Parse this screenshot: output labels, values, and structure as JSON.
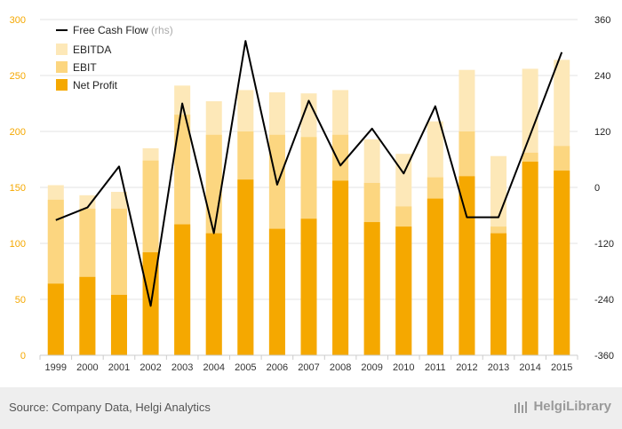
{
  "chart_data": {
    "type": "bar",
    "categories": [
      "1999",
      "2000",
      "2001",
      "2002",
      "2003",
      "2004",
      "2005",
      "2006",
      "2007",
      "2008",
      "2009",
      "2010",
      "2011",
      "2012",
      "2013",
      "2014",
      "2015"
    ],
    "series": [
      {
        "name": "EBITDA",
        "values": [
          152,
          143,
          146,
          185,
          241,
          227,
          237,
          235,
          234,
          237,
          193,
          180,
          209,
          255,
          178,
          256,
          264
        ],
        "color": "#FDE8B8"
      },
      {
        "name": "EBIT",
        "values": [
          139,
          131,
          131,
          174,
          215,
          197,
          200,
          197,
          195,
          197,
          154,
          133,
          159,
          200,
          115,
          181,
          187
        ],
        "color": "#FCD680"
      },
      {
        "name": "Net Profit",
        "values": [
          64,
          70,
          54,
          92,
          117,
          109,
          157,
          113,
          122,
          156,
          119,
          115,
          140,
          160,
          109,
          173,
          165
        ],
        "color": "#F5A800"
      },
      {
        "name": "Free Cash Flow",
        "note": "(rhs)",
        "values": [
          -70,
          -43,
          45,
          -254,
          180,
          -98,
          314,
          6,
          186,
          47,
          126,
          30,
          174,
          -64,
          -64,
          112,
          290
        ],
        "color": "#000000"
      }
    ],
    "ylim": [
      0,
      300
    ],
    "yticks": [
      "0",
      "50",
      "100",
      "150",
      "200",
      "250",
      "300"
    ],
    "y2lim": [
      -360,
      360
    ],
    "y2ticks": [
      "-360",
      "-240",
      "-120",
      "0",
      "120",
      "240",
      "360"
    ],
    "legend_position": "top-left"
  },
  "footer": {
    "source": "Source: Company Data, Helgi Analytics",
    "brand": "HelgiLibrary"
  }
}
